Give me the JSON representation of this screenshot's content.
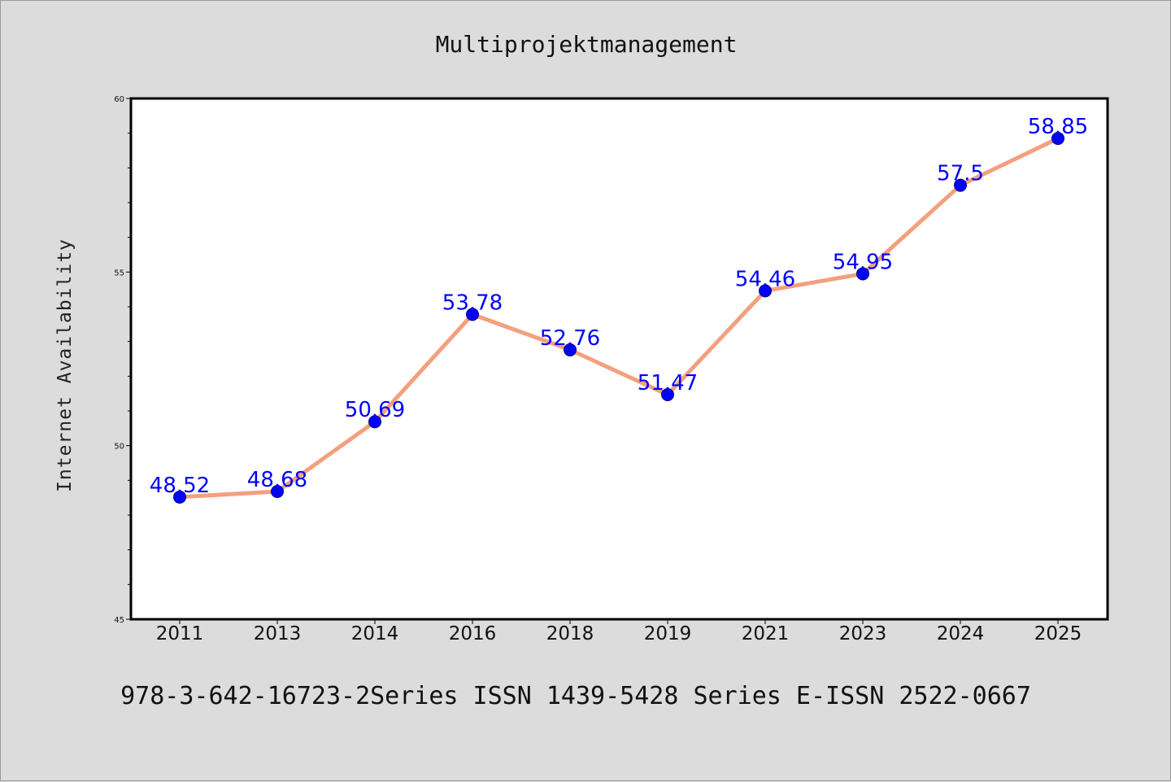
{
  "colors": {
    "background": "#dcdcdc",
    "plot_background": "#ffffff",
    "line": "#f4a07e",
    "marker": "#0000ff",
    "data_label": "#0000ff"
  },
  "footer": "978-3-642-16723-2Series ISSN 1439-5428 Series E-ISSN 2522-0667",
  "chart_data": {
    "type": "line",
    "title": "Multiprojektmanagement",
    "xlabel": "",
    "ylabel": "Internet Availability",
    "categories": [
      "2011",
      "2013",
      "2014",
      "2016",
      "2018",
      "2019",
      "2021",
      "2023",
      "2024",
      "2025"
    ],
    "series": [
      {
        "values": [
          48.52,
          48.68,
          50.69,
          53.78,
          52.76,
          51.47,
          54.46,
          54.95,
          57.5,
          58.85
        ],
        "labels": [
          "48.52",
          "48.68",
          "50.69",
          "53.78",
          "52.76",
          "51.47",
          "54.46",
          "54.95",
          "57.5",
          "58.85"
        ]
      }
    ],
    "ylim": [
      45,
      60
    ],
    "yticks": [
      "45",
      "50",
      "55",
      "60"
    ],
    "y_minor_step": 1,
    "grid": false,
    "legend": "none"
  }
}
